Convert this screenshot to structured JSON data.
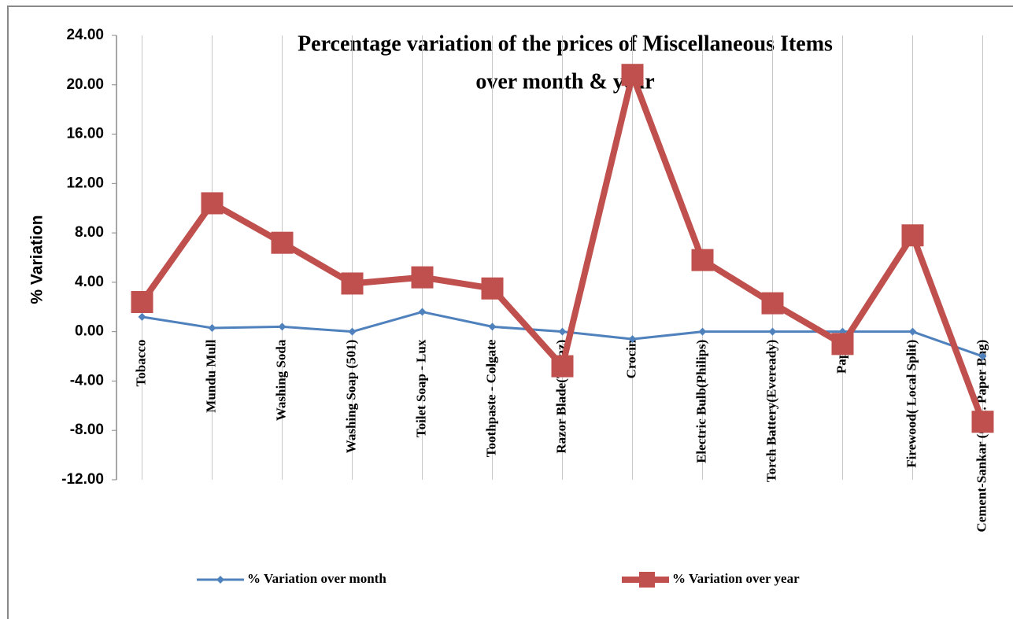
{
  "chart_data": {
    "type": "line",
    "title": [
      "Percentage variation of the prices of Miscellaneous Items",
      "over month & year"
    ],
    "y_label": "% Variation",
    "categories": [
      "Tobacco",
      "Mundu Mull",
      "Washing Soda",
      "Washing Soap (501)",
      "Toilet Soap - Lux",
      "Toothpaste - Colgate",
      "Razor Blade(Topaz)",
      "Crocin",
      "Electric Bulb(Philips)",
      "Torch Battery(Eveready)",
      "Paper",
      "Firewood( Local Split)",
      "Cement-Sankar (Ord. Paper Bag)"
    ],
    "series": [
      {
        "name": "%  Variation over month",
        "color": "#4f81bd",
        "marker": "diamond",
        "values": [
          1.2,
          0.3,
          0.4,
          0.0,
          1.6,
          0.4,
          0.0,
          -0.6,
          0.0,
          0.0,
          0.0,
          0.0,
          -2.0
        ]
      },
      {
        "name": "%  Variation over year",
        "color": "#c0504d",
        "marker": "square",
        "values": [
          2.4,
          10.4,
          7.2,
          3.9,
          4.4,
          3.5,
          -2.8,
          20.8,
          5.8,
          2.3,
          -1.0,
          7.8,
          -7.3
        ]
      }
    ],
    "ylim": [
      -12,
      24
    ],
    "yticks": [
      {
        "value": -12,
        "label": "-12.00"
      },
      {
        "value": -8,
        "label": "-8.00"
      },
      {
        "value": -4,
        "label": "-4.00"
      },
      {
        "value": 0,
        "label": "0.00"
      },
      {
        "value": 4,
        "label": "4.00"
      },
      {
        "value": 8,
        "label": "8.00"
      },
      {
        "value": 12,
        "label": "12.00"
      },
      {
        "value": 16,
        "label": "16.00"
      },
      {
        "value": 20,
        "label": "20.00"
      },
      {
        "value": 24,
        "label": "24.00"
      }
    ],
    "grid": "vertical",
    "legend": "bottom"
  }
}
